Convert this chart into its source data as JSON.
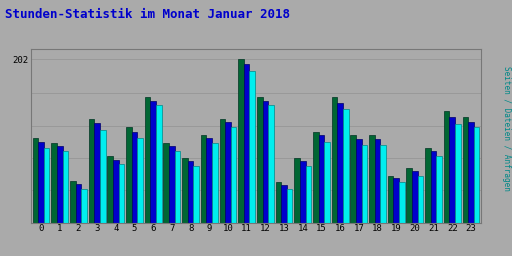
{
  "title": "Stunden-Statistik im Monat Januar 2018",
  "title_color": "#0000cc",
  "ylabel": "Seiten / Dateien / Anfragen",
  "ylabel_color": "#008888",
  "bg_color": "#aaaaaa",
  "hours": [
    0,
    1,
    2,
    3,
    4,
    5,
    6,
    7,
    8,
    9,
    10,
    11,
    12,
    13,
    14,
    15,
    16,
    17,
    18,
    19,
    20,
    21,
    22,
    23
  ],
  "seiten": [
    105,
    98,
    52,
    128,
    82,
    118,
    155,
    98,
    80,
    108,
    128,
    202,
    155,
    50,
    80,
    112,
    155,
    108,
    108,
    58,
    68,
    92,
    138,
    130
  ],
  "dateien": [
    100,
    95,
    48,
    123,
    78,
    112,
    150,
    95,
    76,
    105,
    125,
    196,
    150,
    47,
    76,
    108,
    148,
    103,
    103,
    55,
    64,
    88,
    130,
    125
  ],
  "anfragen": [
    92,
    88,
    42,
    115,
    72,
    105,
    146,
    88,
    70,
    98,
    118,
    188,
    146,
    42,
    70,
    100,
    140,
    96,
    96,
    50,
    58,
    82,
    122,
    118
  ],
  "color_seiten": "#006633",
  "color_dateien": "#0000cc",
  "color_anfragen": "#00eeee",
  "edge_seiten": "#003322",
  "edge_dateien": "#000066",
  "edge_anfragen": "#008888",
  "ymax": 215,
  "grid_vals": [
    40,
    80,
    120,
    160,
    202
  ],
  "ytick_val": 202
}
